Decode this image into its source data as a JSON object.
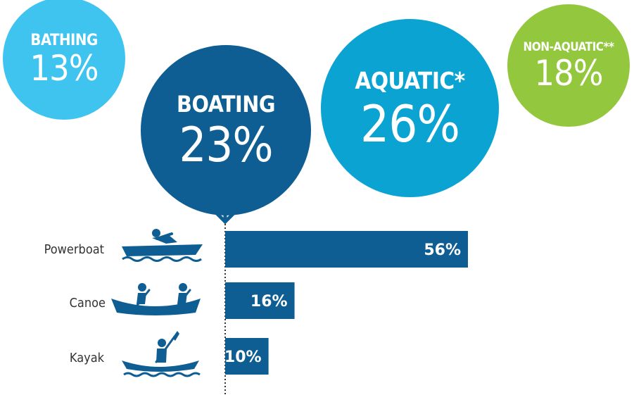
{
  "bubbles": [
    {
      "label": "BATHING",
      "value": "13%",
      "color": "#3fc4f0"
    },
    {
      "label": "BOATING",
      "value": "23%",
      "color": "#0f5e93"
    },
    {
      "label": "AQUATIC*",
      "value": "26%",
      "color": "#0aa3d2"
    },
    {
      "label": "NON-AQUATIC**",
      "value": "18%",
      "color": "#93c83e"
    }
  ],
  "chart_data": {
    "type": "bar",
    "orientation": "horizontal",
    "categories": [
      "Powerboat",
      "Canoe",
      "Kayak"
    ],
    "values": [
      56,
      16,
      10
    ],
    "value_labels": [
      "56%",
      "16%",
      "10%"
    ],
    "icons": [
      "powerboat-icon",
      "canoe-icon",
      "kayak-icon"
    ],
    "bar_color": "#0f5e93",
    "xlim": [
      0,
      100
    ],
    "title": "",
    "xlabel": "",
    "ylabel": ""
  }
}
